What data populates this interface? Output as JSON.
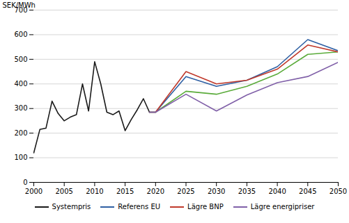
{
  "chart_data": {
    "type": "line",
    "ylabel": "SEK/MWh",
    "xlim": [
      2000,
      2050
    ],
    "xticks": [
      2000,
      2005,
      2010,
      2015,
      2020,
      2025,
      2030,
      2035,
      2040,
      2045,
      2050
    ],
    "ylim": [
      0,
      700
    ],
    "yticks": [
      0,
      100,
      200,
      300,
      400,
      500,
      600,
      700
    ],
    "grid": true,
    "legend": "bottom",
    "series": [
      {
        "color": "#5aab3a",
        "x": [
          2019,
          2020,
          2025,
          2030,
          2035,
          2040,
          2045,
          2050
        ],
        "values": [
          285,
          285,
          370,
          358,
          390,
          440,
          520,
          530
        ]
      },
      {
        "name": "Systempris",
        "color": "#1a1a1a",
        "x": [
          2000,
          2001,
          2002,
          2003,
          2004,
          2005,
          2006,
          2007,
          2008,
          2009,
          2010,
          2011,
          2012,
          2013,
          2014,
          2015,
          2016,
          2017,
          2018,
          2019
        ],
        "values": [
          120,
          215,
          220,
          330,
          280,
          250,
          265,
          275,
          400,
          290,
          490,
          400,
          285,
          275,
          290,
          210,
          255,
          295,
          340,
          285
        ]
      },
      {
        "name": "Referens EU",
        "color": "#2e5fa3",
        "x": [
          2019,
          2020,
          2025,
          2030,
          2035,
          2040,
          2045,
          2050
        ],
        "values": [
          285,
          285,
          430,
          390,
          415,
          470,
          580,
          535
        ]
      },
      {
        "name": "Lägre BNP",
        "color": "#c0392b",
        "x": [
          2019,
          2020,
          2025,
          2030,
          2035,
          2040,
          2045,
          2050
        ],
        "values": [
          285,
          285,
          450,
          400,
          415,
          460,
          558,
          530
        ]
      },
      {
        "name": "Lägre energipriser",
        "color": "#8060a8",
        "x": [
          2019,
          2020,
          2025,
          2030,
          2035,
          2040,
          2045,
          2050
        ],
        "values": [
          285,
          285,
          358,
          290,
          355,
          405,
          430,
          488
        ]
      }
    ]
  }
}
